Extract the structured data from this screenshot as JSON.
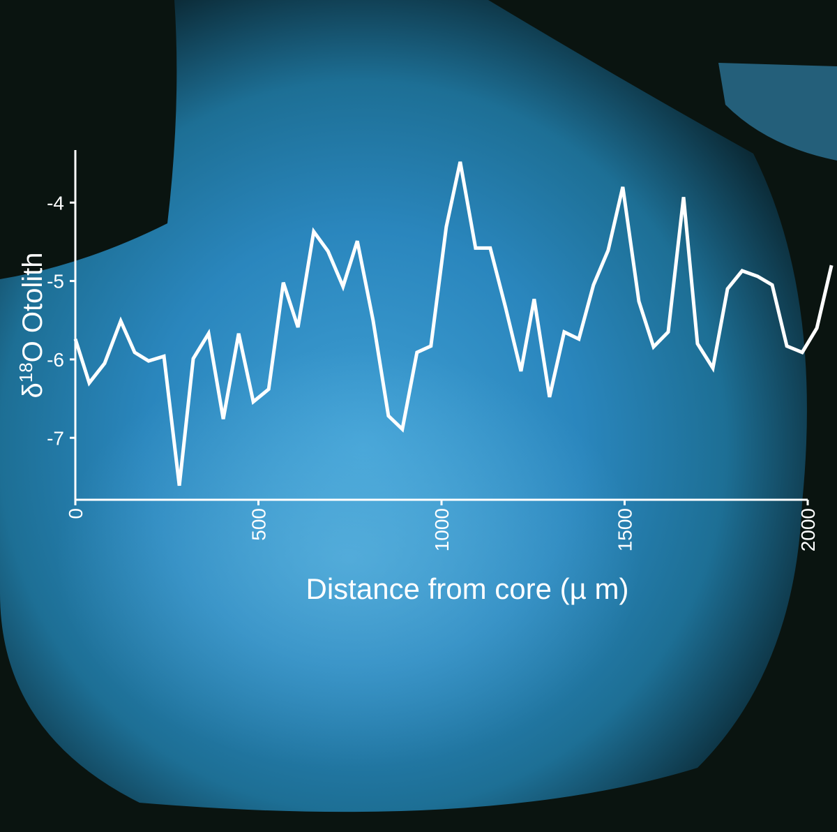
{
  "chart_data": {
    "type": "line",
    "y_label": {
      "symbol": "δ",
      "sup": "18",
      "rest": "O Otolith"
    },
    "x_label": "Distance from core (µ m)",
    "x": [
      0,
      38,
      80,
      124,
      162,
      200,
      242,
      284,
      322,
      364,
      404,
      446,
      486,
      528,
      568,
      608,
      651,
      690,
      731,
      770,
      813,
      855,
      893,
      933,
      971,
      1013,
      1051,
      1093,
      1133,
      1175,
      1217,
      1253,
      1295,
      1335,
      1375,
      1415,
      1455,
      1495,
      1539,
      1579,
      1619,
      1661,
      1699,
      1741,
      1781,
      1821,
      1863,
      1903,
      1943,
      1985,
      2025,
      2065
    ],
    "series": [
      {
        "color": "#ffffff",
        "values": [
          -5.74,
          -6.3,
          -6.05,
          -5.51,
          -5.91,
          -6.02,
          -5.96,
          -7.61,
          -5.99,
          -5.67,
          -6.76,
          -5.67,
          -6.54,
          -6.38,
          -5.02,
          -5.59,
          -4.37,
          -4.62,
          -5.07,
          -4.49,
          -5.5,
          -6.72,
          -6.89,
          -5.91,
          -5.83,
          -4.31,
          -3.48,
          -4.58,
          -4.58,
          -5.34,
          -6.15,
          -5.23,
          -6.48,
          -5.65,
          -5.74,
          -5.05,
          -4.61,
          -3.8,
          -5.26,
          -5.84,
          -5.65,
          -3.93,
          -5.8,
          -6.11,
          -5.1,
          -4.87,
          -4.94,
          -5.05,
          -5.83,
          -5.91,
          -5.6,
          -4.8
        ]
      }
    ],
    "xlim": [
      0,
      2000
    ],
    "xticks": [
      0,
      500,
      1000,
      1500,
      2000
    ],
    "ylim": [
      -7.79,
      -3.33
    ],
    "yticks": [
      -7,
      -6,
      -5,
      -4
    ]
  }
}
